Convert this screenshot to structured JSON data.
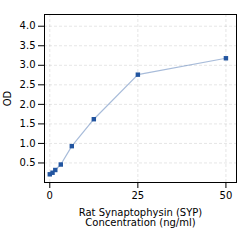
{
  "chart_data": {
    "type": "line",
    "x": [
      0,
      0.78,
      1.56,
      3.125,
      6.25,
      12.5,
      25,
      50
    ],
    "values": [
      0.21,
      0.25,
      0.32,
      0.46,
      0.93,
      1.62,
      2.76,
      3.18
    ],
    "color": "#2255a0",
    "marker": "square",
    "xlabel": "Rat Synaptophysin (SYP)\nConcentration (ng/ml)",
    "ylabel": "OD",
    "xlim": [
      -1.5,
      53
    ],
    "ylim": [
      0,
      4.3
    ],
    "xticks": [
      0,
      25,
      50
    ],
    "yticks": [
      0.5,
      {
        "value": 1,
        "label": "1.0"
      },
      1.5,
      {
        "value": 2,
        "label": "2.0"
      },
      2.5,
      {
        "value": 3,
        "label": "3.0"
      },
      3.5,
      {
        "value": 4,
        "label": "4.0"
      }
    ],
    "grid": true
  }
}
